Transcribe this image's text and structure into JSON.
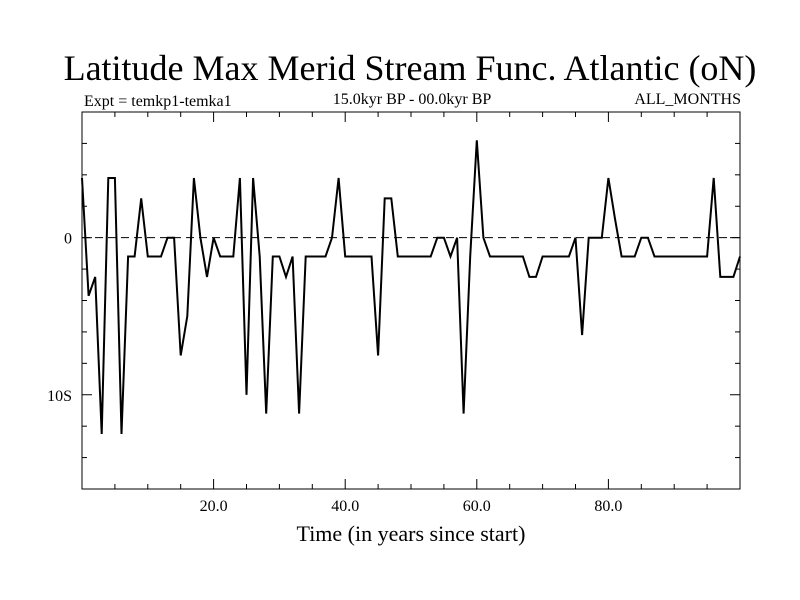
{
  "chart_data": {
    "type": "line",
    "title": "Latitude Max Merid Stream Func. Atlantic (oN)",
    "subtitle_left": "Expt = temkp1-temka1",
    "subtitle_center": "15.0kyr BP - 00.0kyr BP",
    "subtitle_right": "ALL_MONTHS",
    "xlabel": "Time (in years since start)",
    "ylabel": "",
    "xlim": [
      0,
      100
    ],
    "ylim": [
      -16,
      8
    ],
    "xticks": [
      {
        "value": 20,
        "label": "20.0"
      },
      {
        "value": 40,
        "label": "40.0"
      },
      {
        "value": 60,
        "label": "60.0"
      },
      {
        "value": 80,
        "label": "80.0"
      }
    ],
    "yticks": [
      {
        "value": 0,
        "label": "0"
      },
      {
        "value": -10,
        "label": "10S"
      }
    ],
    "reference_line": {
      "y": 0,
      "style": "dashed"
    },
    "color": "#000000",
    "series": [
      {
        "x": [
          0,
          1,
          2,
          3,
          4,
          5,
          6,
          7,
          8,
          9,
          10,
          11,
          12,
          13,
          14,
          15,
          16,
          17,
          18,
          19,
          20,
          21,
          22,
          23,
          24,
          25,
          26,
          27,
          28,
          29,
          30,
          31,
          32,
          33,
          34,
          35,
          36,
          37,
          38,
          39,
          40,
          41,
          42,
          43,
          44,
          45,
          46,
          47,
          48,
          49,
          50,
          51,
          52,
          53,
          54,
          55,
          56,
          57,
          58,
          59,
          60,
          61,
          62,
          63,
          64,
          65,
          66,
          67,
          68,
          69,
          70,
          71,
          72,
          73,
          74,
          75,
          76,
          77,
          78,
          79,
          80,
          81,
          82,
          83,
          84,
          85,
          86,
          87,
          88,
          89,
          90,
          91,
          92,
          93,
          94,
          95,
          96,
          97,
          98,
          99,
          100
        ],
        "values": [
          3.8,
          -3.7,
          -2.5,
          -12.5,
          3.8,
          3.8,
          -12.5,
          -1.2,
          -1.2,
          2.5,
          -1.2,
          -1.2,
          -1.2,
          0,
          0,
          -7.5,
          -5,
          3.8,
          0,
          -2.5,
          0,
          -1.2,
          -1.2,
          -1.2,
          3.8,
          -10,
          3.8,
          -1.2,
          -11.2,
          -1.2,
          -1.2,
          -2.5,
          -1.2,
          -11.2,
          -1.2,
          -1.2,
          -1.2,
          -1.2,
          0,
          3.8,
          -1.2,
          -1.2,
          -1.2,
          -1.2,
          -1.2,
          -7.5,
          2.5,
          2.5,
          -1.2,
          -1.2,
          -1.2,
          -1.2,
          -1.2,
          -1.2,
          0,
          0,
          -1.2,
          0,
          -11.2,
          -1.2,
          6.2,
          0,
          -1.2,
          -1.2,
          -1.2,
          -1.2,
          -1.2,
          -1.2,
          -2.5,
          -2.5,
          -1.2,
          -1.2,
          -1.2,
          -1.2,
          -1.2,
          0,
          -6.2,
          0,
          0,
          0,
          3.8,
          1.2,
          -1.2,
          -1.2,
          -1.2,
          0,
          0,
          -1.2,
          -1.2,
          -1.2,
          -1.2,
          -1.2,
          -1.2,
          -1.2,
          -1.2,
          -1.2,
          3.8,
          -2.5,
          -2.5,
          -2.5,
          -1.2
        ]
      }
    ]
  }
}
